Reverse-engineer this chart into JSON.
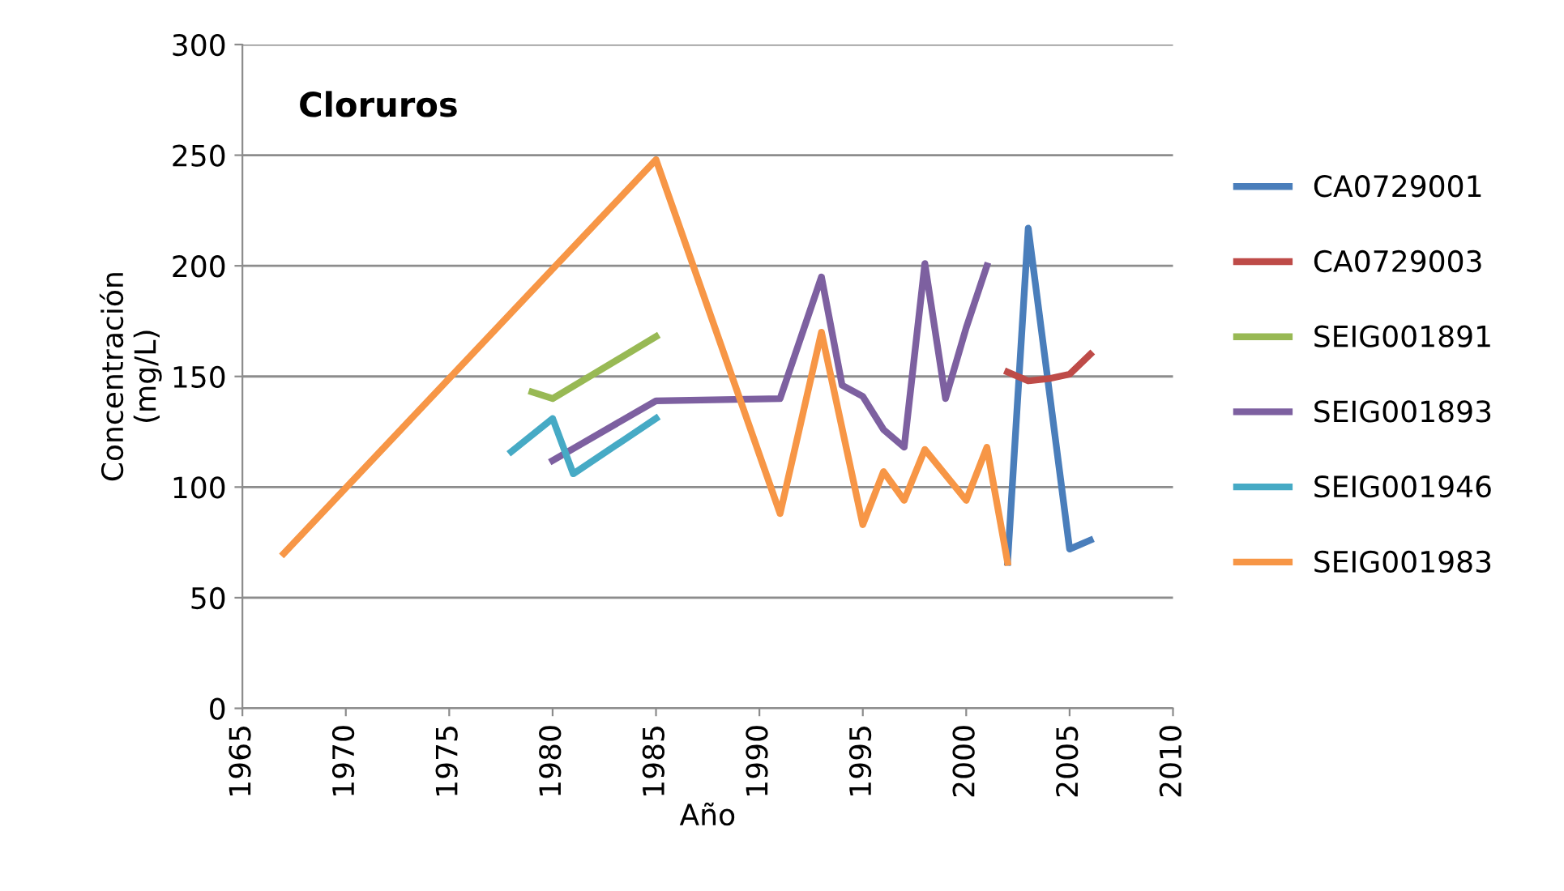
{
  "chart_data": {
    "type": "line",
    "title": "Cloruros",
    "xlabel": "Año",
    "ylabel": "Concentración\n(mg/L)",
    "xlim": [
      1965,
      2010
    ],
    "xticks": [
      1965,
      1970,
      1975,
      1980,
      1985,
      1990,
      1995,
      2000,
      2005,
      2010
    ],
    "ylim": [
      0,
      300
    ],
    "yticks": [
      0,
      50,
      100,
      150,
      200,
      250,
      300
    ],
    "grid": "y",
    "legend": "right",
    "marker": "none",
    "line_style": "solid",
    "series": [
      {
        "name": "CA0729001",
        "color": "#4a7ebb",
        "x": [
          2002,
          2003,
          2005,
          2006
        ],
        "values": [
          66,
          217,
          72,
          76
        ]
      },
      {
        "name": "CA0729003",
        "color": "#be4b48",
        "x": [
          2002,
          2003,
          2004,
          2005,
          2006
        ],
        "values": [
          152,
          148,
          149,
          151,
          160
        ]
      },
      {
        "name": "SEIG001891",
        "color": "#98b954",
        "x": [
          1979,
          1980,
          1985
        ],
        "values": [
          143,
          140,
          168
        ]
      },
      {
        "name": "SEIG001893",
        "color": "#7d60a0",
        "x": [
          1980,
          1985,
          1991,
          1993,
          1994,
          1995,
          1996,
          1997,
          1998,
          1999,
          2000,
          2001
        ],
        "values": [
          112,
          139,
          140,
          195,
          146,
          141,
          126,
          118,
          201,
          140,
          172,
          200
        ]
      },
      {
        "name": "SEIG001946",
        "color": "#46aac5",
        "x": [
          1978,
          1980,
          1981,
          1985
        ],
        "values": [
          116,
          131,
          106,
          131
        ]
      },
      {
        "name": "SEIG001983",
        "color": "#f79646",
        "x": [
          1967,
          1985,
          1991,
          1993,
          1995,
          1996,
          1997,
          1998,
          2000,
          2001,
          2002
        ],
        "values": [
          70,
          248,
          88,
          170,
          83,
          107,
          94,
          117,
          94,
          118,
          66
        ]
      }
    ]
  }
}
